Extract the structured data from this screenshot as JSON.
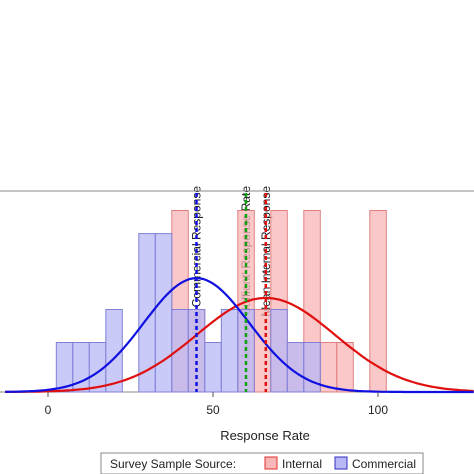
{
  "chart_data": {
    "type": "bar",
    "xlabel": "Response Rate",
    "ylabel": "",
    "xlim": [
      -13,
      129
    ],
    "ylim": [
      0,
      6
    ],
    "x_ticks": [
      0,
      50,
      100
    ],
    "bin_width": 5,
    "grid": false,
    "series": [
      {
        "name": "Internal",
        "fill": "#f8b6b6",
        "stroke": "#e08080",
        "bins": [
          {
            "x": 40,
            "count": 5.5
          },
          {
            "x": 45,
            "count": 2.5
          },
          {
            "x": 60,
            "count": 5.5
          },
          {
            "x": 65,
            "count": 2.5
          },
          {
            "x": 70,
            "count": 5.5
          },
          {
            "x": 75,
            "count": 1.5
          },
          {
            "x": 80,
            "count": 5.5
          },
          {
            "x": 85,
            "count": 1.5
          },
          {
            "x": 90,
            "count": 1.5
          },
          {
            "x": 100,
            "count": 5.5
          }
        ],
        "density_curve": {
          "mean": 66,
          "sd": 21,
          "peak": 2.85,
          "color": "#e01010"
        }
      },
      {
        "name": "Commercial",
        "fill": "#b8b8f6",
        "stroke": "#8080d8",
        "bins": [
          {
            "x": 5,
            "count": 1.5
          },
          {
            "x": 10,
            "count": 1.5
          },
          {
            "x": 15,
            "count": 1.5
          },
          {
            "x": 20,
            "count": 2.5
          },
          {
            "x": 30,
            "count": 4.8
          },
          {
            "x": 35,
            "count": 4.8
          },
          {
            "x": 40,
            "count": 2.5
          },
          {
            "x": 45,
            "count": 2.5
          },
          {
            "x": 50,
            "count": 1.5
          },
          {
            "x": 55,
            "count": 2.5
          },
          {
            "x": 60,
            "count": 2.5
          },
          {
            "x": 70,
            "count": 2.5
          },
          {
            "x": 75,
            "count": 1.5
          },
          {
            "x": 80,
            "count": 1.5
          }
        ],
        "density_curve": {
          "mean": 45,
          "sd": 16,
          "peak": 3.45,
          "color": "#1010e0"
        }
      }
    ],
    "reference_lines": [
      {
        "label": "Mean Commercial Response",
        "x": 45,
        "color": "#1010e0"
      },
      {
        "label": "Journal 'Suffient' Response Rate",
        "x": 60,
        "color": "#10a010"
      },
      {
        "label": "Mean Internal Response",
        "x": 66,
        "color": "#e01010"
      }
    ],
    "legend": {
      "title": "Survey Sample Source:",
      "position": "bottom",
      "items": [
        {
          "label": "Internal",
          "fill": "#f8b6b6",
          "stroke": "#e03030"
        },
        {
          "label": "Commercial",
          "fill": "#b8b8f6",
          "stroke": "#3030c0"
        }
      ]
    }
  }
}
